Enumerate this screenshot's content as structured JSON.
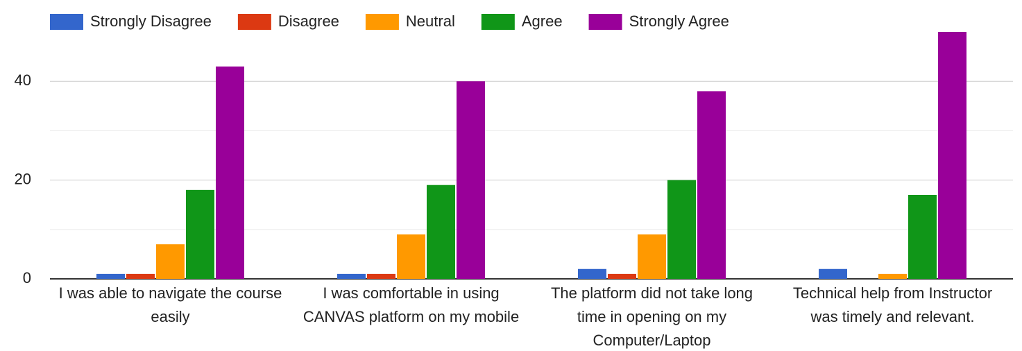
{
  "chart_data": {
    "type": "bar",
    "categories": [
      "I was able to navigate the course easily",
      "I was comfortable in using CANVAS platform on my mobile",
      "The platform did not take long time in opening on my Computer/Laptop",
      "Technical help from Instructor was timely and relevant."
    ],
    "series": [
      {
        "name": "Strongly Disagree",
        "color": "#3366cc",
        "values": [
          1,
          1,
          2,
          2
        ]
      },
      {
        "name": "Disagree",
        "color": "#dc3912",
        "values": [
          1,
          1,
          1,
          0
        ]
      },
      {
        "name": "Neutral",
        "color": "#ff9900",
        "values": [
          7,
          9,
          9,
          1
        ]
      },
      {
        "name": "Agree",
        "color": "#109618",
        "values": [
          18,
          19,
          20,
          17
        ]
      },
      {
        "name": "Strongly Agree",
        "color": "#990099",
        "values": [
          43,
          40,
          38,
          50
        ]
      }
    ],
    "ylim": [
      0,
      50
    ],
    "yticks": [
      0,
      20,
      40
    ],
    "minor_yticks": [
      10,
      30
    ],
    "grid": true,
    "legend": "top"
  }
}
